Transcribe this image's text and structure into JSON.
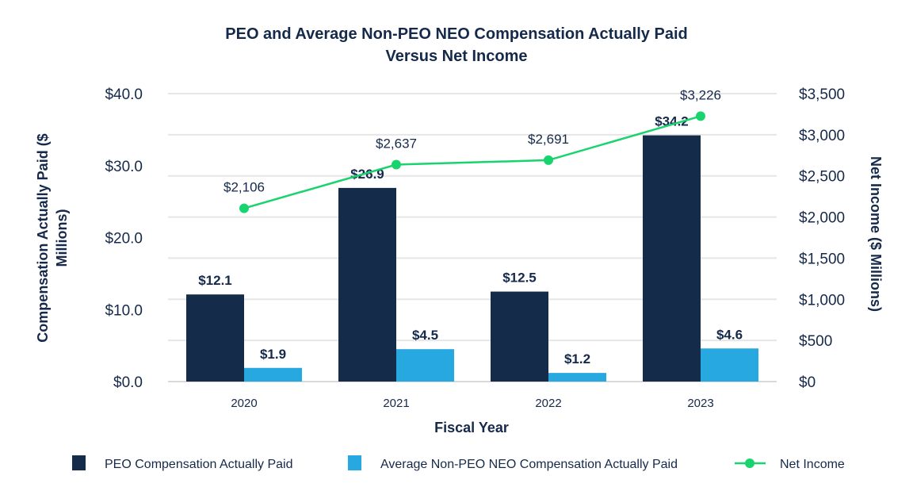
{
  "chart_data": {
    "type": "bar",
    "title": [
      "PEO and Average Non-PEO NEO Compensation Actually Paid",
      "Versus Net Income"
    ],
    "xlabel": "Fiscal Year",
    "ylabel": "Compensation Actually Paid ($ Millions)",
    "ylabel_lines": [
      "Compensation Actually Paid ($",
      "Millions)"
    ],
    "y2label": "Net Income ($ Millions)",
    "categories": [
      "2020",
      "2021",
      "2022",
      "2023"
    ],
    "ylim": [
      0,
      40
    ],
    "y_ticks": [
      0,
      10,
      20,
      30,
      40
    ],
    "y_tick_labels": [
      "$0.0",
      "$10.0",
      "$20.0",
      "$30.0",
      "$40.0"
    ],
    "y2lim": [
      0,
      3500
    ],
    "y2_ticks": [
      0,
      500,
      1000,
      1500,
      2000,
      2500,
      3000,
      3500
    ],
    "y2_tick_labels": [
      "$0",
      "$500",
      "$1,000",
      "$1,500",
      "$2,000",
      "$2,500",
      "$3,000",
      "$3,500"
    ],
    "grid": true,
    "legend_position": "bottom",
    "series": [
      {
        "name": "PEO Compensation Actually Paid",
        "type": "bar",
        "axis": "left",
        "color": "#142b4a",
        "values": [
          12.1,
          26.9,
          12.5,
          34.2
        ],
        "labels": [
          "$12.1",
          "$26.9",
          "$12.5",
          "$34.2"
        ]
      },
      {
        "name": "Average Non-PEO NEO Compensation Actually Paid",
        "type": "bar",
        "axis": "left",
        "color": "#27a8e0",
        "values": [
          1.9,
          4.5,
          1.2,
          4.6
        ],
        "labels": [
          "$1.9",
          "$4.5",
          "$1.2",
          "$4.6"
        ]
      },
      {
        "name": "Net Income",
        "type": "line",
        "axis": "right",
        "color": "#19d46e",
        "values": [
          2106,
          2637,
          2691,
          3226
        ],
        "labels": [
          "$2,106",
          "$2,637",
          "$2,691",
          "$3,226"
        ]
      }
    ]
  }
}
